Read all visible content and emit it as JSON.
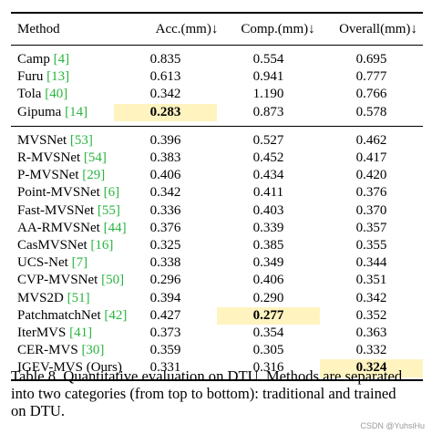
{
  "headers": {
    "method": "Method",
    "acc": "Acc.(mm)↓",
    "comp": "Comp.(mm)↓",
    "overall": "Overall(mm)↓"
  },
  "traditional": [
    {
      "name": "Camp ",
      "ref": "[4]",
      "acc": "0.835",
      "comp": "0.554",
      "overall": "0.695"
    },
    {
      "name": "Furu ",
      "ref": "[13]",
      "acc": "0.613",
      "comp": "0.941",
      "overall": "0.777"
    },
    {
      "name": "Tola ",
      "ref": "[40]",
      "acc": "0.342",
      "comp": "1.190",
      "overall": "0.766"
    },
    {
      "name": "Gipuma ",
      "ref": "[14]",
      "acc": "0.283",
      "comp": "0.873",
      "overall": "0.578"
    }
  ],
  "learned": [
    {
      "name": "MVSNet ",
      "ref": "[53]",
      "acc": "0.396",
      "comp": "0.527",
      "overall": "0.462"
    },
    {
      "name": "R-MVSNet ",
      "ref": "[54]",
      "acc": "0.383",
      "comp": "0.452",
      "overall": "0.417"
    },
    {
      "name": "P-MVSNet ",
      "ref": "[29]",
      "acc": "0.406",
      "comp": "0.434",
      "overall": "0.420"
    },
    {
      "name": "Point-MVSNet ",
      "ref": "[6]",
      "acc": "0.342",
      "comp": "0.411",
      "overall": "0.376"
    },
    {
      "name": "Fast-MVSNet ",
      "ref": "[55]",
      "acc": "0.336",
      "comp": "0.403",
      "overall": "0.370"
    },
    {
      "name": "AA-RMVSNet ",
      "ref": "[44]",
      "acc": "0.376",
      "comp": "0.339",
      "overall": "0.357"
    },
    {
      "name": "CasMVSNet ",
      "ref": "[16]",
      "acc": "0.325",
      "comp": "0.385",
      "overall": "0.355"
    },
    {
      "name": "UCS-Net ",
      "ref": "[7]",
      "acc": "0.338",
      "comp": "0.349",
      "overall": "0.344"
    },
    {
      "name": "CVP-MVSNet ",
      "ref": "[50]",
      "acc": "0.296",
      "comp": "0.406",
      "overall": "0.351"
    },
    {
      "name": "MVS2D ",
      "ref": "[51]",
      "acc": "0.394",
      "comp": "0.290",
      "overall": "0.342"
    },
    {
      "name": "PatchmatchNet ",
      "ref": "[42]",
      "acc": "0.427",
      "comp": "0.277",
      "overall": "0.352"
    },
    {
      "name": "IterMVS ",
      "ref": "[41]",
      "acc": "0.373",
      "comp": "0.354",
      "overall": "0.363"
    },
    {
      "name": "CER-MVS ",
      "ref": "[30]",
      "acc": "0.359",
      "comp": "0.305",
      "overall": "0.332"
    },
    {
      "name": "IGEV-MVS (Ours)",
      "ref": "",
      "acc": "0.331",
      "comp": "0.316",
      "overall": "0.324"
    }
  ],
  "caption": {
    "line1": "Table 8.  Quantitative evaluation on DTU. Methods are separated",
    "line2": "into two categories (from top to bottom):  traditional and trained",
    "line3": "on DTU."
  },
  "watermark": "CSDN @YuhsiHu",
  "colors": {
    "reference_link": "#29b53f",
    "best_highlight": "#fff4c0"
  }
}
